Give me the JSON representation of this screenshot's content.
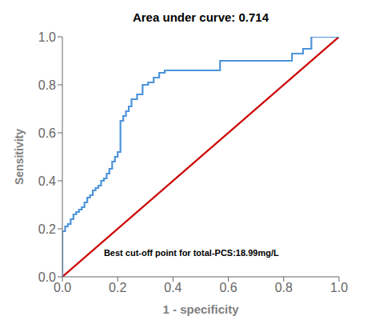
{
  "chart_data": {
    "type": "line",
    "title": "Area under curve: 0.714",
    "xlabel": "1 - specificity",
    "ylabel": "Sensitivity",
    "annotation": "Best cut-off point for total-PCS:18.99mg/L",
    "grid": false,
    "series": [
      {
        "color": "#cc0000",
        "x": [
          0,
          1
        ],
        "values": [
          0,
          1
        ]
      },
      {
        "color": "#4d94db",
        "x": [
          0.0,
          0.0,
          0.0,
          0.01,
          0.01,
          0.02,
          0.02,
          0.03,
          0.03,
          0.04,
          0.04,
          0.05,
          0.05,
          0.06,
          0.06,
          0.07,
          0.07,
          0.08,
          0.08,
          0.09,
          0.09,
          0.1,
          0.1,
          0.11,
          0.11,
          0.12,
          0.12,
          0.13,
          0.13,
          0.14,
          0.14,
          0.15,
          0.15,
          0.16,
          0.16,
          0.17,
          0.17,
          0.18,
          0.18,
          0.19,
          0.19,
          0.2,
          0.2,
          0.21,
          0.21,
          0.22,
          0.22,
          0.23,
          0.23,
          0.24,
          0.24,
          0.25,
          0.25,
          0.27,
          0.27,
          0.29,
          0.29,
          0.31,
          0.31,
          0.33,
          0.33,
          0.35,
          0.35,
          0.37,
          0.37,
          0.4,
          0.4,
          0.43,
          0.43,
          0.46,
          0.46,
          0.5,
          0.5,
          0.54,
          0.54,
          0.57,
          0.57,
          0.6,
          0.6,
          0.63,
          0.63,
          0.67,
          0.67,
          0.7,
          0.7,
          0.73,
          0.73,
          0.77,
          0.77,
          0.8,
          0.8,
          0.83,
          0.83,
          0.87,
          0.87,
          0.9,
          0.9,
          0.93,
          0.93,
          0.97,
          0.97,
          1.0,
          1.0
        ],
        "values": [
          0.0,
          0.17,
          0.19,
          0.19,
          0.21,
          0.21,
          0.22,
          0.22,
          0.24,
          0.24,
          0.26,
          0.26,
          0.27,
          0.27,
          0.28,
          0.28,
          0.29,
          0.29,
          0.31,
          0.31,
          0.33,
          0.33,
          0.34,
          0.34,
          0.36,
          0.36,
          0.37,
          0.37,
          0.38,
          0.38,
          0.4,
          0.4,
          0.41,
          0.41,
          0.43,
          0.43,
          0.45,
          0.45,
          0.48,
          0.48,
          0.5,
          0.5,
          0.52,
          0.52,
          0.65,
          0.65,
          0.67,
          0.67,
          0.69,
          0.69,
          0.71,
          0.71,
          0.74,
          0.74,
          0.76,
          0.76,
          0.8,
          0.8,
          0.81,
          0.81,
          0.83,
          0.83,
          0.85,
          0.85,
          0.86,
          0.86,
          0.86,
          0.86,
          0.86,
          0.86,
          0.86,
          0.86,
          0.86,
          0.86,
          0.86,
          0.86,
          0.9,
          0.9,
          0.9,
          0.9,
          0.9,
          0.9,
          0.9,
          0.9,
          0.9,
          0.9,
          0.9,
          0.9,
          0.9,
          0.9,
          0.9,
          0.9,
          0.93,
          0.93,
          0.95,
          0.95,
          1.0,
          1.0,
          1.0,
          1.0,
          1.0,
          1.0,
          1.0
        ]
      }
    ],
    "xlim": [
      0.0,
      1.0
    ],
    "ylim": [
      0.0,
      1.0
    ],
    "xticks": [
      {
        "value": 0,
        "label": "0.0"
      },
      0.2,
      0.4,
      0.6,
      0.8,
      {
        "value": 1,
        "label": "1.0"
      }
    ],
    "yticks": [
      {
        "value": 0,
        "label": "0.0"
      },
      0.2,
      0.4,
      0.6,
      0.8,
      {
        "value": 1,
        "label": "1.0"
      }
    ]
  }
}
